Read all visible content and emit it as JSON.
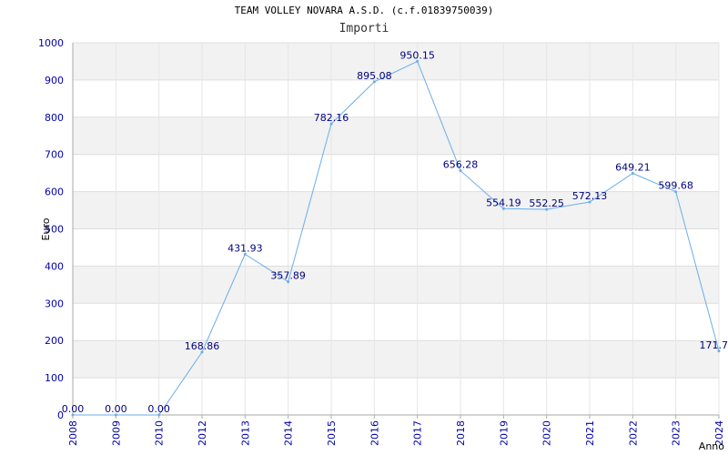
{
  "chart_data": {
    "type": "line",
    "title": "TEAM VOLLEY NOVARA A.S.D. (c.f.01839750039)",
    "subtitle": "Importi",
    "xlabel": "Anno",
    "ylabel": "Euro",
    "ylim": [
      0,
      1000
    ],
    "yticks": [
      0,
      100,
      200,
      300,
      400,
      500,
      600,
      700,
      800,
      900,
      1000
    ],
    "grid": true,
    "categories": [
      "2008",
      "2009",
      "2010",
      "2012",
      "2013",
      "2014",
      "2015",
      "2016",
      "2017",
      "2018",
      "2019",
      "2020",
      "2021",
      "2022",
      "2023",
      "2024"
    ],
    "series": [
      {
        "values": [
          0.0,
          0.0,
          0.0,
          168.86,
          431.93,
          357.89,
          782.16,
          895.08,
          950.15,
          656.28,
          554.19,
          552.25,
          572.13,
          649.21,
          599.68,
          171.7
        ],
        "labels": [
          "0.00",
          "0.00",
          "0.00",
          "168.86",
          "431.93",
          "357.89",
          "782.16",
          "895.08",
          "950.15",
          "656.28",
          "554.19",
          "552.25",
          "572.13",
          "649.21",
          "599.68",
          "171.7"
        ]
      }
    ],
    "colors": {
      "line": "#6aaee8",
      "band": "#f2f2f2",
      "gridline": "#dddddd",
      "tick": "#0000aa",
      "label": "#000080"
    }
  }
}
